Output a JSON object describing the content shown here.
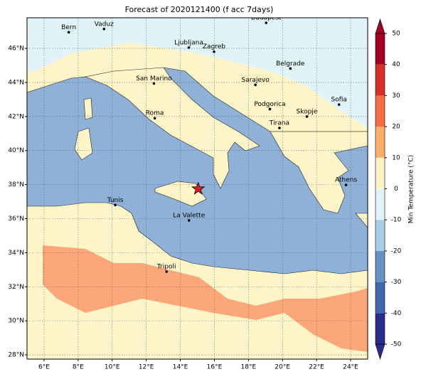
{
  "title": "Forecast of 2020121400 (f acc 7days)",
  "lonlim": [
    5,
    25
  ],
  "latlim": [
    27.75,
    47.8
  ],
  "lonticks": [
    {
      "value": 6,
      "label": "6°E"
    },
    {
      "value": 8,
      "label": "8°E"
    },
    {
      "value": 10,
      "label": "10°E"
    },
    {
      "value": 12,
      "label": "12°E"
    },
    {
      "value": 14,
      "label": "14°E"
    },
    {
      "value": 16,
      "label": "16°E"
    },
    {
      "value": 18,
      "label": "18°E"
    },
    {
      "value": 20,
      "label": "20°E"
    },
    {
      "value": 22,
      "label": "22°E"
    },
    {
      "value": 24,
      "label": "24°E"
    }
  ],
  "latticks": [
    {
      "value": 28,
      "label": "28°N"
    },
    {
      "value": 30,
      "label": "30°N"
    },
    {
      "value": 32,
      "label": "32°N"
    },
    {
      "value": 34,
      "label": "34°N"
    },
    {
      "value": 36,
      "label": "36°N"
    },
    {
      "value": 38,
      "label": "38°N"
    },
    {
      "value": 40,
      "label": "40°N"
    },
    {
      "value": 42,
      "label": "42°N"
    },
    {
      "value": 44,
      "label": "44°N"
    },
    {
      "value": 46,
      "label": "46°N"
    }
  ],
  "grid": true,
  "cities": [
    {
      "name": "Bern",
      "lon": 7.45,
      "lat": 46.95
    },
    {
      "name": "Vaduz",
      "lon": 9.52,
      "lat": 47.14
    },
    {
      "name": "Budapest",
      "lon": 19.04,
      "lat": 47.5
    },
    {
      "name": "Ljubljana",
      "lon": 14.5,
      "lat": 46.05
    },
    {
      "name": "Zagreb",
      "lon": 15.98,
      "lat": 45.81
    },
    {
      "name": "Belgrade",
      "lon": 20.46,
      "lat": 44.82
    },
    {
      "name": "San Marino",
      "lon": 12.45,
      "lat": 43.94
    },
    {
      "name": "Sarajevo",
      "lon": 18.41,
      "lat": 43.86
    },
    {
      "name": "Sofia",
      "lon": 23.32,
      "lat": 42.7
    },
    {
      "name": "Roma",
      "lon": 12.5,
      "lat": 41.9
    },
    {
      "name": "Podgorica",
      "lon": 19.26,
      "lat": 42.44
    },
    {
      "name": "Skopje",
      "lon": 21.43,
      "lat": 42.0
    },
    {
      "name": "Tirana",
      "lon": 19.82,
      "lat": 41.33
    },
    {
      "name": "Athens",
      "lon": 23.73,
      "lat": 37.98
    },
    {
      "name": "Tunis",
      "lon": 10.18,
      "lat": 36.8
    },
    {
      "name": "La Valette",
      "lon": 14.51,
      "lat": 35.9
    },
    {
      "name": "Tripoli",
      "lon": 13.19,
      "lat": 32.89
    }
  ],
  "marker": {
    "lon": 15.05,
    "lat": 37.75,
    "color": "#e41a1c"
  },
  "colorbar": {
    "label": "Min Temperature (°C)",
    "lim": [
      -50,
      50
    ],
    "ticks": [
      -50,
      -40,
      -30,
      -20,
      -10,
      0,
      10,
      20,
      30,
      40,
      50
    ],
    "colors": [
      "#2b2b8c",
      "#3f68ad",
      "#6892c4",
      "#a5cde3",
      "#e0f3f8",
      "#fdf4c8",
      "#fdae6b",
      "#f46d43",
      "#d73027",
      "#a50026"
    ]
  }
}
